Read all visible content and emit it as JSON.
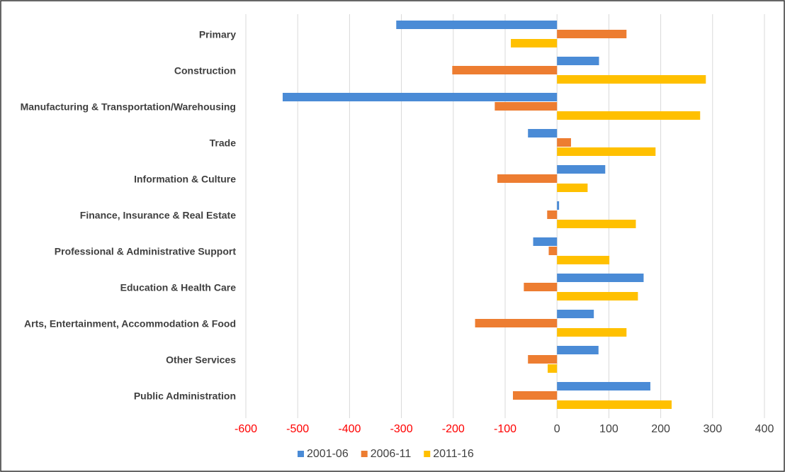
{
  "chart_data": {
    "type": "bar",
    "orientation": "horizontal",
    "categories": [
      "Primary",
      "Construction",
      "Manufacturing & Transportation/Warehousing",
      "Trade",
      "Information & Culture",
      "Finance, Insurance & Real Estate",
      "Professional & Administrative Support",
      "Education & Health Care",
      "Arts, Entertainment, Accommodation & Food",
      "Other Services",
      "Public Administration"
    ],
    "series": [
      {
        "name": "2001-06",
        "color": "#4a8bd6",
        "values": [
          -310,
          81,
          -529,
          -56,
          93,
          4,
          -46,
          167,
          71,
          80,
          180
        ]
      },
      {
        "name": "2006-11",
        "color": "#ed7d31",
        "values": [
          134,
          -202,
          -120,
          27,
          -115,
          -19,
          -16,
          -64,
          -158,
          -56,
          -85
        ]
      },
      {
        "name": "2011-16",
        "color": "#ffc000",
        "values": [
          -89,
          287,
          276,
          190,
          59,
          152,
          101,
          156,
          134,
          -18,
          221
        ]
      }
    ],
    "xlim": [
      -600,
      400
    ],
    "xticks": [
      -600,
      -500,
      -400,
      -300,
      -200,
      -100,
      0,
      100,
      200,
      300,
      400
    ],
    "negative_tick_color": "#ff0000",
    "grid": true,
    "legend": "bottom"
  }
}
